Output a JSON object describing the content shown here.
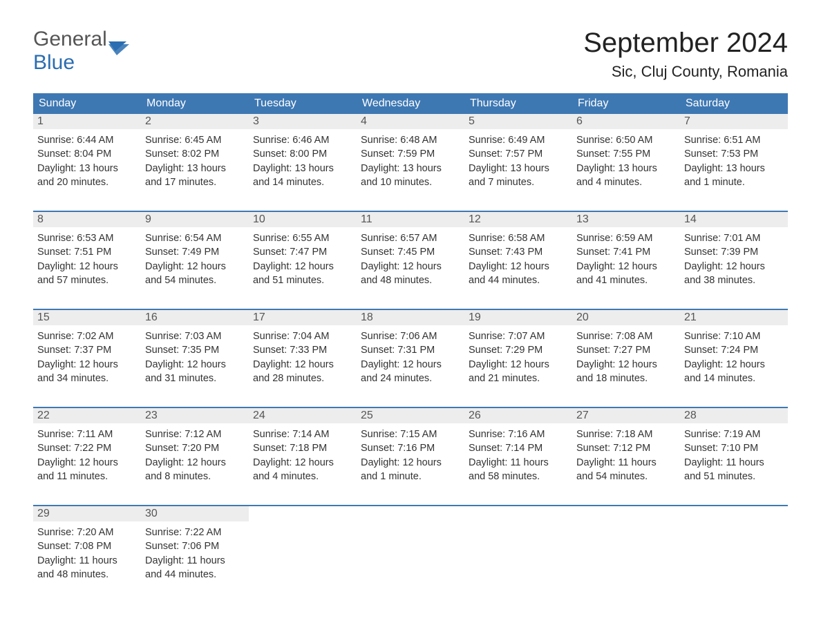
{
  "logo": {
    "text1": "General",
    "text2": "Blue"
  },
  "title": "September 2024",
  "location": "Sic, Cluj County, Romania",
  "colors": {
    "header_bg": "#3e78b3",
    "header_text": "#ffffff",
    "daynum_bg": "#ededed",
    "daynum_text": "#555555",
    "body_text": "#333333",
    "logo_blue": "#2a6db0",
    "logo_gray": "#555555",
    "page_bg": "#ffffff"
  },
  "typography": {
    "title_fontsize": 40,
    "location_fontsize": 22,
    "dow_fontsize": 16,
    "cell_fontsize": 14.5,
    "logo_fontsize": 30
  },
  "layout": {
    "columns": 7,
    "rows": 5,
    "week_border_color": "#3e78b3",
    "week_border_width": 2
  },
  "days_of_week": [
    "Sunday",
    "Monday",
    "Tuesday",
    "Wednesday",
    "Thursday",
    "Friday",
    "Saturday"
  ],
  "weeks": [
    [
      {
        "num": "1",
        "sunrise": "Sunrise: 6:44 AM",
        "sunset": "Sunset: 8:04 PM",
        "day1": "Daylight: 13 hours",
        "day2": "and 20 minutes."
      },
      {
        "num": "2",
        "sunrise": "Sunrise: 6:45 AM",
        "sunset": "Sunset: 8:02 PM",
        "day1": "Daylight: 13 hours",
        "day2": "and 17 minutes."
      },
      {
        "num": "3",
        "sunrise": "Sunrise: 6:46 AM",
        "sunset": "Sunset: 8:00 PM",
        "day1": "Daylight: 13 hours",
        "day2": "and 14 minutes."
      },
      {
        "num": "4",
        "sunrise": "Sunrise: 6:48 AM",
        "sunset": "Sunset: 7:59 PM",
        "day1": "Daylight: 13 hours",
        "day2": "and 10 minutes."
      },
      {
        "num": "5",
        "sunrise": "Sunrise: 6:49 AM",
        "sunset": "Sunset: 7:57 PM",
        "day1": "Daylight: 13 hours",
        "day2": "and 7 minutes."
      },
      {
        "num": "6",
        "sunrise": "Sunrise: 6:50 AM",
        "sunset": "Sunset: 7:55 PM",
        "day1": "Daylight: 13 hours",
        "day2": "and 4 minutes."
      },
      {
        "num": "7",
        "sunrise": "Sunrise: 6:51 AM",
        "sunset": "Sunset: 7:53 PM",
        "day1": "Daylight: 13 hours",
        "day2": "and 1 minute."
      }
    ],
    [
      {
        "num": "8",
        "sunrise": "Sunrise: 6:53 AM",
        "sunset": "Sunset: 7:51 PM",
        "day1": "Daylight: 12 hours",
        "day2": "and 57 minutes."
      },
      {
        "num": "9",
        "sunrise": "Sunrise: 6:54 AM",
        "sunset": "Sunset: 7:49 PM",
        "day1": "Daylight: 12 hours",
        "day2": "and 54 minutes."
      },
      {
        "num": "10",
        "sunrise": "Sunrise: 6:55 AM",
        "sunset": "Sunset: 7:47 PM",
        "day1": "Daylight: 12 hours",
        "day2": "and 51 minutes."
      },
      {
        "num": "11",
        "sunrise": "Sunrise: 6:57 AM",
        "sunset": "Sunset: 7:45 PM",
        "day1": "Daylight: 12 hours",
        "day2": "and 48 minutes."
      },
      {
        "num": "12",
        "sunrise": "Sunrise: 6:58 AM",
        "sunset": "Sunset: 7:43 PM",
        "day1": "Daylight: 12 hours",
        "day2": "and 44 minutes."
      },
      {
        "num": "13",
        "sunrise": "Sunrise: 6:59 AM",
        "sunset": "Sunset: 7:41 PM",
        "day1": "Daylight: 12 hours",
        "day2": "and 41 minutes."
      },
      {
        "num": "14",
        "sunrise": "Sunrise: 7:01 AM",
        "sunset": "Sunset: 7:39 PM",
        "day1": "Daylight: 12 hours",
        "day2": "and 38 minutes."
      }
    ],
    [
      {
        "num": "15",
        "sunrise": "Sunrise: 7:02 AM",
        "sunset": "Sunset: 7:37 PM",
        "day1": "Daylight: 12 hours",
        "day2": "and 34 minutes."
      },
      {
        "num": "16",
        "sunrise": "Sunrise: 7:03 AM",
        "sunset": "Sunset: 7:35 PM",
        "day1": "Daylight: 12 hours",
        "day2": "and 31 minutes."
      },
      {
        "num": "17",
        "sunrise": "Sunrise: 7:04 AM",
        "sunset": "Sunset: 7:33 PM",
        "day1": "Daylight: 12 hours",
        "day2": "and 28 minutes."
      },
      {
        "num": "18",
        "sunrise": "Sunrise: 7:06 AM",
        "sunset": "Sunset: 7:31 PM",
        "day1": "Daylight: 12 hours",
        "day2": "and 24 minutes."
      },
      {
        "num": "19",
        "sunrise": "Sunrise: 7:07 AM",
        "sunset": "Sunset: 7:29 PM",
        "day1": "Daylight: 12 hours",
        "day2": "and 21 minutes."
      },
      {
        "num": "20",
        "sunrise": "Sunrise: 7:08 AM",
        "sunset": "Sunset: 7:27 PM",
        "day1": "Daylight: 12 hours",
        "day2": "and 18 minutes."
      },
      {
        "num": "21",
        "sunrise": "Sunrise: 7:10 AM",
        "sunset": "Sunset: 7:24 PM",
        "day1": "Daylight: 12 hours",
        "day2": "and 14 minutes."
      }
    ],
    [
      {
        "num": "22",
        "sunrise": "Sunrise: 7:11 AM",
        "sunset": "Sunset: 7:22 PM",
        "day1": "Daylight: 12 hours",
        "day2": "and 11 minutes."
      },
      {
        "num": "23",
        "sunrise": "Sunrise: 7:12 AM",
        "sunset": "Sunset: 7:20 PM",
        "day1": "Daylight: 12 hours",
        "day2": "and 8 minutes."
      },
      {
        "num": "24",
        "sunrise": "Sunrise: 7:14 AM",
        "sunset": "Sunset: 7:18 PM",
        "day1": "Daylight: 12 hours",
        "day2": "and 4 minutes."
      },
      {
        "num": "25",
        "sunrise": "Sunrise: 7:15 AM",
        "sunset": "Sunset: 7:16 PM",
        "day1": "Daylight: 12 hours",
        "day2": "and 1 minute."
      },
      {
        "num": "26",
        "sunrise": "Sunrise: 7:16 AM",
        "sunset": "Sunset: 7:14 PM",
        "day1": "Daylight: 11 hours",
        "day2": "and 58 minutes."
      },
      {
        "num": "27",
        "sunrise": "Sunrise: 7:18 AM",
        "sunset": "Sunset: 7:12 PM",
        "day1": "Daylight: 11 hours",
        "day2": "and 54 minutes."
      },
      {
        "num": "28",
        "sunrise": "Sunrise: 7:19 AM",
        "sunset": "Sunset: 7:10 PM",
        "day1": "Daylight: 11 hours",
        "day2": "and 51 minutes."
      }
    ],
    [
      {
        "num": "29",
        "sunrise": "Sunrise: 7:20 AM",
        "sunset": "Sunset: 7:08 PM",
        "day1": "Daylight: 11 hours",
        "day2": "and 48 minutes."
      },
      {
        "num": "30",
        "sunrise": "Sunrise: 7:22 AM",
        "sunset": "Sunset: 7:06 PM",
        "day1": "Daylight: 11 hours",
        "day2": "and 44 minutes."
      },
      null,
      null,
      null,
      null,
      null
    ]
  ]
}
